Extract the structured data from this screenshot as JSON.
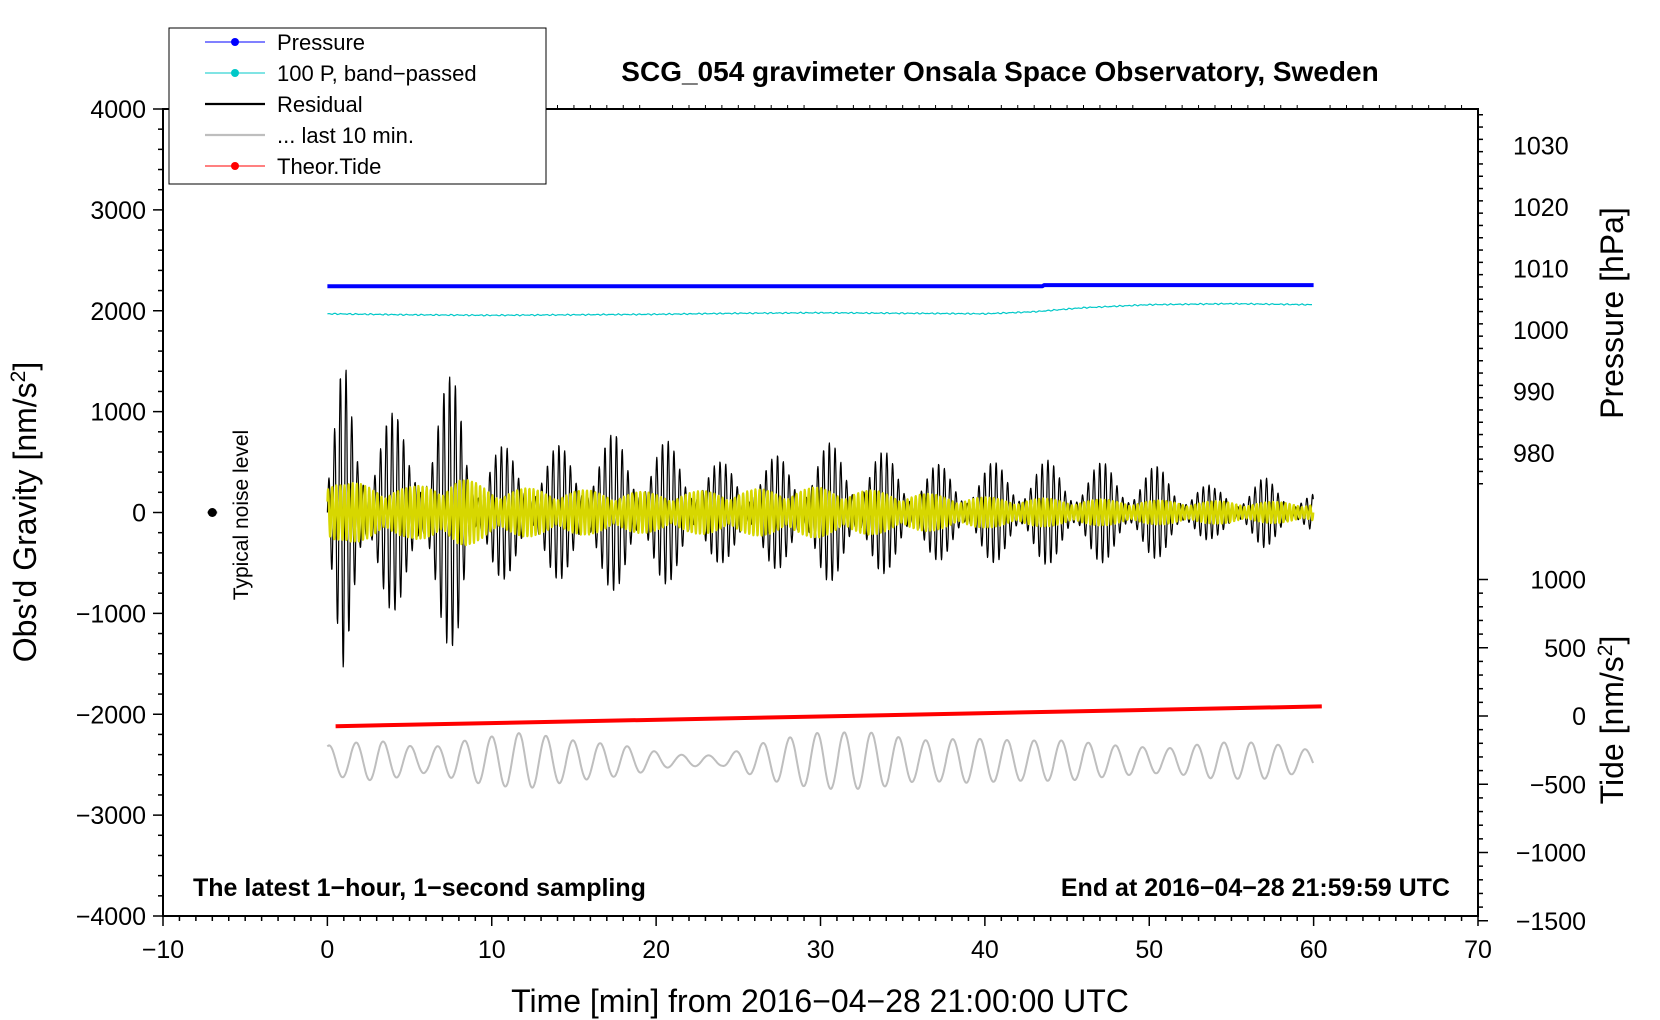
{
  "chart_data": {
    "type": "line",
    "title": "SCG_054 gravimeter Onsala Space Observatory, Sweden",
    "xlabel": "Time [min] from 2016−04−28 21:00:00 UTC",
    "ylabel_left_main": "Obs'd Gravity [nm/s",
    "ylabel_left_sup": "2",
    "ylabel_left_end": "]",
    "ylabel_right_top": "Pressure [hPa]",
    "ylabel_right_bottom_main": "Tide [nm/s",
    "ylabel_right_bottom_sup": "2",
    "ylabel_right_bottom_end": "]",
    "xlim": [
      -10,
      70
    ],
    "xticks": [
      "−10",
      "0",
      "10",
      "20",
      "30",
      "40",
      "50",
      "60",
      "70"
    ],
    "xtick_values": [
      -10,
      0,
      10,
      20,
      30,
      40,
      50,
      60,
      70
    ],
    "ylim_left": [
      -4000,
      4000
    ],
    "yticks_left": [
      "−4000",
      "−3000",
      "−2000",
      "−1000",
      "0",
      "1000",
      "2000",
      "3000",
      "4000"
    ],
    "ytick_values_left": [
      -4000,
      -3000,
      -2000,
      -1000,
      0,
      1000,
      2000,
      3000,
      4000
    ],
    "pressure_ticks": [
      "980",
      "990",
      "1000",
      "1010",
      "1020",
      "1030"
    ],
    "pressure_tick_values": [
      980,
      990,
      1000,
      1010,
      1020,
      1030
    ],
    "tide_ticks": [
      "−1500",
      "−1000",
      "−500",
      "0",
      "500",
      "1000"
    ],
    "tide_tick_values": [
      -1500,
      -1000,
      -500,
      0,
      500,
      1000
    ],
    "legend": [
      {
        "label": "Pressure",
        "color": "#0000ff",
        "marker": true
      },
      {
        "label": "100 P, band−passed",
        "color": "#00c8c8",
        "marker": true
      },
      {
        "label": "Residual",
        "color": "#000000",
        "marker": false
      },
      {
        "label": "... last 10 min.",
        "color": "#bebebe",
        "marker": false
      },
      {
        "label": "Theor.Tide",
        "color": "#ff0000",
        "marker": true
      }
    ],
    "annotations": {
      "noise_label": "Typical noise level",
      "bottom_left": "The latest 1−hour, 1−second sampling",
      "bottom_right": "End at 2016−04−28 21:59:59 UTC"
    },
    "noise_marker": {
      "x": -7,
      "y": 0
    },
    "series": [
      {
        "name": "Pressure",
        "color": "#0000ff",
        "units": "hPa",
        "x": [
          0,
          43.5,
          43.6,
          60
        ],
        "values": [
          1007.1,
          1007.1,
          1007.3,
          1007.3
        ]
      },
      {
        "name": "100 P, band−passed",
        "color": "#00c8c8",
        "units": "nm/s2",
        "x": [
          0,
          5,
          10,
          15,
          20,
          25,
          30,
          35,
          40,
          43,
          46,
          50,
          55,
          60
        ],
        "values": [
          1970,
          1960,
          1955,
          1960,
          1965,
          1975,
          1980,
          1975,
          1970,
          1990,
          2030,
          2060,
          2070,
          2060
        ]
      },
      {
        "name": "Residual",
        "color": "#000000",
        "units": "nm/s2",
        "x_range": [
          0,
          60
        ],
        "amplitude_envelope": {
          "x": [
            0,
            1,
            2,
            3,
            5,
            7,
            8,
            9,
            10,
            12,
            15,
            18,
            21,
            24,
            27,
            30,
            33,
            36,
            39,
            42,
            45,
            48,
            51,
            54,
            57,
            60
          ],
          "values": [
            400,
            1600,
            1000,
            1200,
            800,
            1300,
            1400,
            700,
            700,
            600,
            700,
            800,
            700,
            500,
            550,
            700,
            650,
            500,
            450,
            550,
            500,
            500,
            450,
            250,
            350,
            200
          ]
        }
      },
      {
        "name": "Residual (band)",
        "color": "#d7d700",
        "units": "nm/s2",
        "x_range": [
          0,
          60
        ],
        "amplitude_envelope": {
          "x": [
            0,
            1,
            5,
            8,
            10,
            20,
            30,
            40,
            50,
            60
          ],
          "values": [
            450,
            300,
            250,
            350,
            250,
            200,
            250,
            150,
            120,
            100
          ]
        }
      },
      {
        "name": "... last 10 min.",
        "color": "#bebebe",
        "units": "nm/s2",
        "x_range": [
          0,
          60
        ],
        "offset": -2460,
        "amplitude_envelope": {
          "x": [
            0,
            3,
            6,
            9,
            12,
            15,
            18,
            21,
            24,
            27,
            30,
            33,
            36,
            39,
            42,
            45,
            48,
            51,
            54,
            57,
            60
          ],
          "values": [
            150,
            200,
            120,
            220,
            280,
            200,
            150,
            60,
            50,
            200,
            280,
            280,
            200,
            220,
            200,
            200,
            150,
            120,
            180,
            180,
            100
          ]
        }
      },
      {
        "name": "Theor.Tide",
        "color": "#ff0000",
        "units": "nm/s2",
        "x": [
          0.5,
          60.5
        ],
        "values": [
          -75,
          70
        ]
      }
    ]
  }
}
